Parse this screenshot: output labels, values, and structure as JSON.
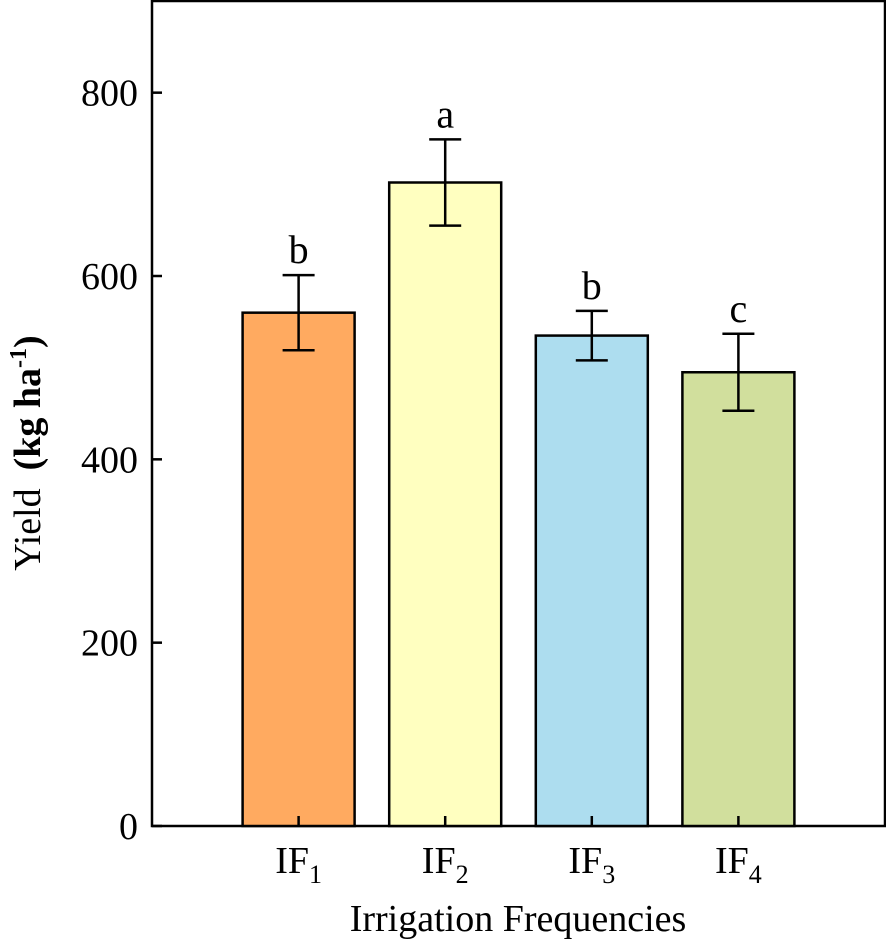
{
  "chart_data": {
    "type": "bar",
    "categories": [
      {
        "base": "IF",
        "sub": "1"
      },
      {
        "base": "IF",
        "sub": "2"
      },
      {
        "base": "IF",
        "sub": "3"
      },
      {
        "base": "IF",
        "sub": "4"
      }
    ],
    "values": [
      560,
      702,
      535,
      495
    ],
    "errors": [
      41,
      47,
      27,
      42
    ],
    "significance_letters": [
      "b",
      "a",
      "b",
      "c"
    ],
    "bar_colors": [
      "#FFAA60",
      "#FFFFC0",
      "#ADDDEF",
      "#D1DF9D"
    ],
    "xlabel": "Irrigation Frequencies",
    "ylabel": {
      "main": "Yield",
      "unit": "(kg ha",
      "sup": "-1",
      "close": ")"
    },
    "ylim": [
      0,
      900
    ],
    "yticks": [
      0,
      200,
      400,
      600,
      800
    ],
    "grid": false,
    "legend": false
  }
}
